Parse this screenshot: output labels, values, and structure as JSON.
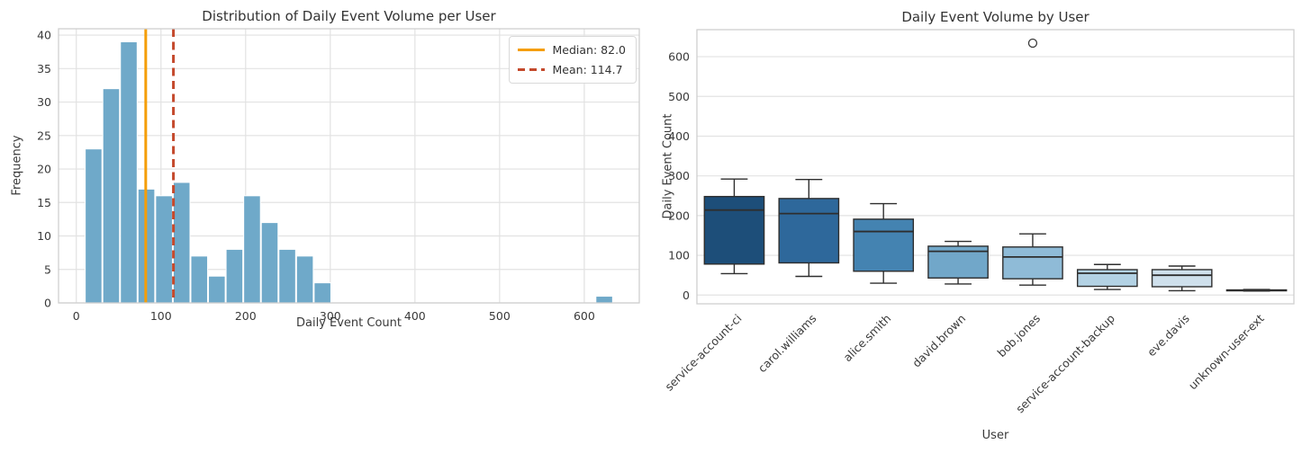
{
  "figure": {
    "background": "#ffffff",
    "grid_color": "#e2e2e2",
    "spine_color": "#cfcfcf",
    "text_color": "#3a3a3a",
    "box_edge_color": "#2e2e2e"
  },
  "chart_data": [
    {
      "type": "histogram",
      "title": "Distribution of Daily Event Volume per User",
      "xlabel": "Daily Event Count",
      "ylabel": "Frequency",
      "bar_color": "#6fa9c9",
      "bin_start": 10,
      "bin_width": 20.8,
      "counts": [
        23,
        32,
        39,
        17,
        16,
        18,
        7,
        4,
        8,
        16,
        12,
        8,
        7,
        3,
        0,
        0,
        0,
        0,
        0,
        0,
        0,
        0,
        0,
        0,
        0,
        0,
        0,
        0,
        0,
        1
      ],
      "xticks": [
        0,
        100,
        200,
        300,
        400,
        500,
        600
      ],
      "yticks": [
        0,
        5,
        10,
        15,
        20,
        25,
        30,
        35,
        40
      ],
      "xlim": [
        -21,
        665
      ],
      "ylim": [
        0,
        40.95
      ],
      "grid": true,
      "legend_position": "upper right",
      "legend": [
        {
          "label": "Median: 82.0",
          "value": 82.0,
          "color": "#f59e07",
          "style": "solid"
        },
        {
          "label": "Mean: 114.7",
          "value": 114.7,
          "color": "#c4492c",
          "style": "dashed"
        }
      ]
    },
    {
      "type": "box",
      "title": "Daily Event Volume by User",
      "xlabel": "User",
      "ylabel": "Daily Event Count",
      "yticks": [
        0,
        100,
        200,
        300,
        400,
        500,
        600
      ],
      "ylim": [
        -22,
        668
      ],
      "grid": true,
      "categories": [
        "service-account-ci",
        "carol.williams",
        "alice.smith",
        "david.brown",
        "bob.jones",
        "service-account-backup",
        "eve.davis",
        "unknown-user-ext"
      ],
      "series": [
        {
          "name": "service-account-ci",
          "whisker_low": 54,
          "q1": 78,
          "median": 214,
          "q3": 248,
          "whisker_high": 292,
          "outliers": [],
          "color": "#1d4e79"
        },
        {
          "name": "carol.williams",
          "whisker_low": 47,
          "q1": 81,
          "median": 205,
          "q3": 243,
          "whisker_high": 291,
          "outliers": [],
          "color": "#2e689b"
        },
        {
          "name": "alice.smith",
          "whisker_low": 30,
          "q1": 60,
          "median": 160,
          "q3": 191,
          "whisker_high": 230,
          "outliers": [],
          "color": "#4483b1"
        },
        {
          "name": "david.brown",
          "whisker_low": 28,
          "q1": 43,
          "median": 110,
          "q3": 123,
          "whisker_high": 135,
          "outliers": [],
          "color": "#71a7c9"
        },
        {
          "name": "bob.jones",
          "whisker_low": 25,
          "q1": 41,
          "median": 96,
          "q3": 121,
          "whisker_high": 154,
          "outliers": [
            634
          ],
          "color": "#8fbbd7"
        },
        {
          "name": "service-account-backup",
          "whisker_low": 14,
          "q1": 22,
          "median": 55,
          "q3": 64,
          "whisker_high": 77,
          "outliers": [],
          "color": "#b3d2e4"
        },
        {
          "name": "eve.davis",
          "whisker_low": 11,
          "q1": 21,
          "median": 50,
          "q3": 64,
          "whisker_high": 73,
          "outliers": [],
          "color": "#cfe0ec"
        },
        {
          "name": "unknown-user-ext",
          "whisker_low": 10,
          "q1": 11,
          "median": 12,
          "q3": 13,
          "whisker_high": 14,
          "outliers": [],
          "color": "#e3eef7"
        }
      ]
    }
  ]
}
